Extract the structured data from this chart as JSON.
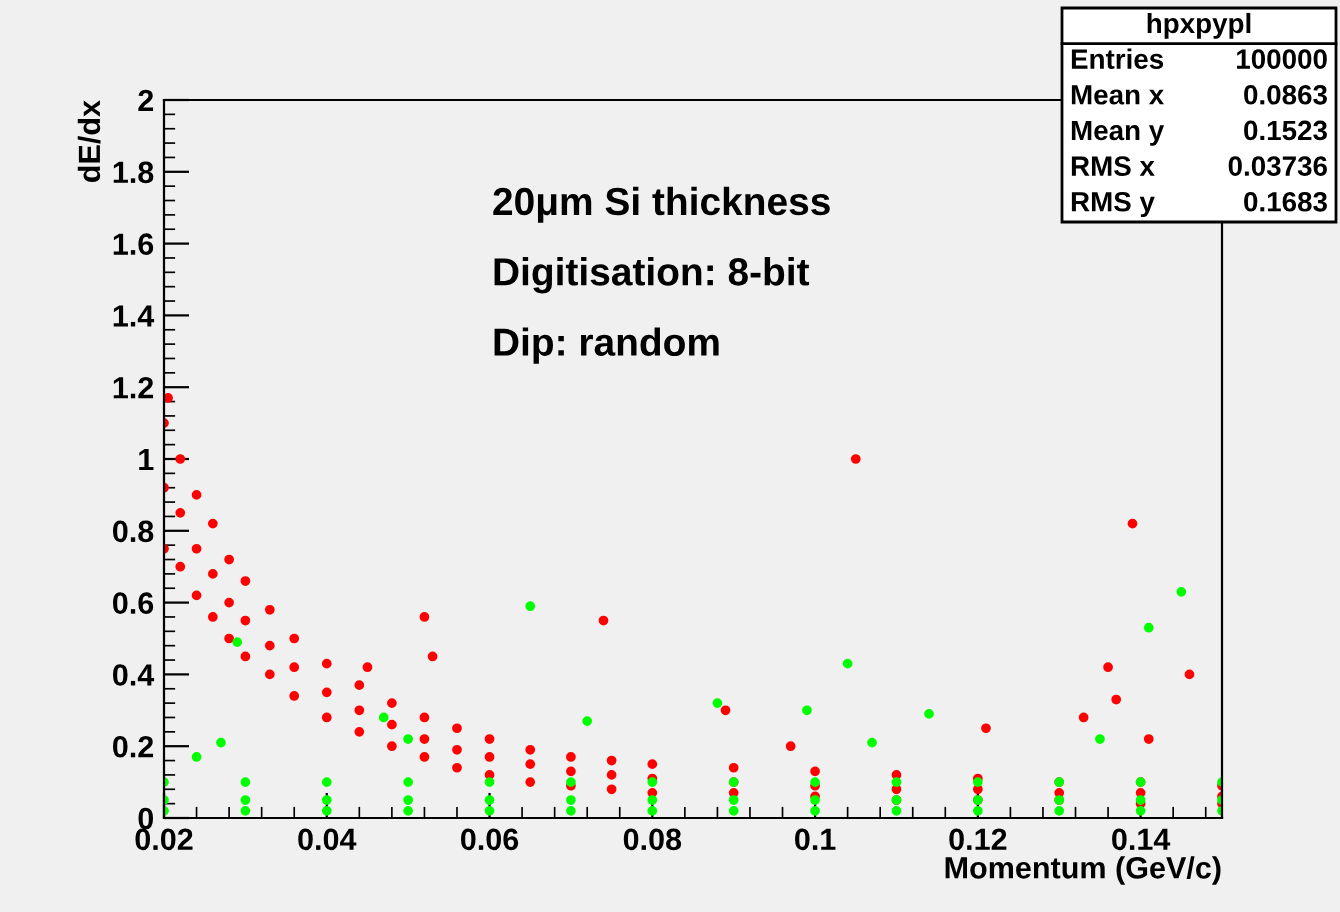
{
  "chart_data": {
    "type": "scatter",
    "xlabel": "Momentum (GeV/c)",
    "ylabel": "dE/dx",
    "xlim": [
      0.02,
      0.15
    ],
    "xticks": [
      0.02,
      0.04,
      0.06,
      0.08,
      0.1,
      0.12,
      0.14
    ],
    "ylim": [
      0,
      2
    ],
    "yticks": [
      0,
      0.2,
      0.4,
      0.6,
      0.8,
      1,
      1.2,
      1.4,
      1.6,
      1.8,
      2
    ],
    "grid": false,
    "legend": false,
    "marker": "circle",
    "annotations": [
      "20μm Si thickness",
      "Digitisation: 8-bit",
      "Dip: random",
      "hpxpypl",
      "Entries  100000",
      "Mean x   0.0863",
      "Mean y   0.1523",
      "RMS x   0.03736",
      "RMS y   0.1683"
    ],
    "series": [
      {
        "color": "#ff0000",
        "x": [
          0.02,
          0.02,
          0.02,
          0.022,
          0.022,
          0.022,
          0.024,
          0.024,
          0.024,
          0.026,
          0.026,
          0.026,
          0.028,
          0.028,
          0.028,
          0.03,
          0.03,
          0.03,
          0.033,
          0.033,
          0.033,
          0.036,
          0.036,
          0.036,
          0.04,
          0.04,
          0.04,
          0.044,
          0.044,
          0.044,
          0.048,
          0.048,
          0.048,
          0.052,
          0.052,
          0.052,
          0.056,
          0.056,
          0.056,
          0.06,
          0.06,
          0.06,
          0.065,
          0.065,
          0.065,
          0.07,
          0.07,
          0.07,
          0.075,
          0.075,
          0.075,
          0.08,
          0.08,
          0.08,
          0.09,
          0.09,
          0.09,
          0.1,
          0.1,
          0.1,
          0.11,
          0.11,
          0.11,
          0.12,
          0.12,
          0.12,
          0.13,
          0.13,
          0.13,
          0.14,
          0.14,
          0.14,
          0.15,
          0.15,
          0.15,
          0.0205,
          0.052,
          0.074,
          0.053,
          0.045,
          0.105,
          0.139,
          0.146,
          0.136,
          0.137,
          0.121,
          0.133,
          0.141,
          0.089,
          0.097
        ],
        "values": [
          1.1,
          0.92,
          0.75,
          1.0,
          0.85,
          0.7,
          0.9,
          0.75,
          0.62,
          0.82,
          0.68,
          0.56,
          0.72,
          0.6,
          0.5,
          0.66,
          0.55,
          0.45,
          0.58,
          0.48,
          0.4,
          0.5,
          0.42,
          0.34,
          0.43,
          0.35,
          0.28,
          0.37,
          0.3,
          0.24,
          0.32,
          0.26,
          0.2,
          0.28,
          0.22,
          0.17,
          0.25,
          0.19,
          0.14,
          0.22,
          0.17,
          0.12,
          0.19,
          0.15,
          0.1,
          0.17,
          0.13,
          0.09,
          0.16,
          0.12,
          0.08,
          0.15,
          0.11,
          0.07,
          0.14,
          0.1,
          0.07,
          0.13,
          0.09,
          0.06,
          0.12,
          0.08,
          0.05,
          0.11,
          0.08,
          0.05,
          0.1,
          0.07,
          0.05,
          0.1,
          0.07,
          0.04,
          0.09,
          0.06,
          0.04,
          1.17,
          0.56,
          0.55,
          0.45,
          0.42,
          1.0,
          0.82,
          0.4,
          0.42,
          0.33,
          0.25,
          0.28,
          0.22,
          0.3,
          0.2
        ]
      },
      {
        "color": "#00ff00",
        "x": [
          0.02,
          0.02,
          0.02,
          0.03,
          0.03,
          0.03,
          0.04,
          0.04,
          0.04,
          0.05,
          0.05,
          0.05,
          0.06,
          0.06,
          0.06,
          0.07,
          0.07,
          0.07,
          0.08,
          0.08,
          0.08,
          0.09,
          0.09,
          0.09,
          0.1,
          0.1,
          0.1,
          0.11,
          0.11,
          0.11,
          0.12,
          0.12,
          0.12,
          0.13,
          0.13,
          0.13,
          0.14,
          0.14,
          0.14,
          0.15,
          0.15,
          0.15,
          0.029,
          0.065,
          0.104,
          0.145,
          0.141,
          0.114,
          0.072,
          0.047,
          0.024,
          0.027,
          0.099,
          0.088,
          0.107,
          0.135,
          0.05
        ],
        "values": [
          0.02,
          0.05,
          0.1,
          0.02,
          0.05,
          0.1,
          0.02,
          0.05,
          0.1,
          0.02,
          0.05,
          0.1,
          0.02,
          0.05,
          0.1,
          0.02,
          0.05,
          0.1,
          0.02,
          0.05,
          0.1,
          0.02,
          0.05,
          0.1,
          0.02,
          0.05,
          0.1,
          0.02,
          0.05,
          0.1,
          0.02,
          0.05,
          0.1,
          0.02,
          0.05,
          0.1,
          0.02,
          0.05,
          0.1,
          0.02,
          0.05,
          0.1,
          0.49,
          0.59,
          0.43,
          0.63,
          0.53,
          0.29,
          0.27,
          0.28,
          0.17,
          0.21,
          0.3,
          0.32,
          0.21,
          0.22,
          0.22
        ]
      }
    ]
  }
}
